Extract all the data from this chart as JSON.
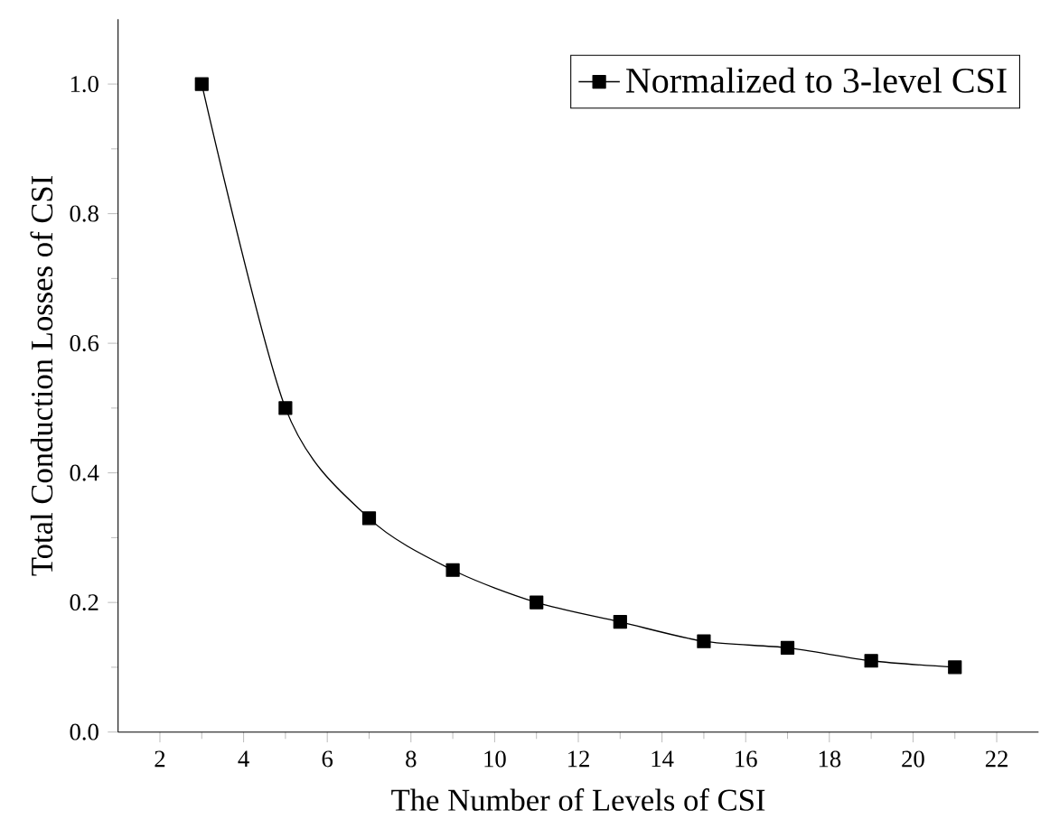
{
  "chart_data": {
    "type": "line",
    "xlabel": "The Number of Levels of CSI",
    "ylabel": "Total Conduction Losses of CSI",
    "x": [
      3,
      5,
      7,
      9,
      11,
      13,
      15,
      17,
      19,
      21
    ],
    "series": [
      {
        "name": "Normalized to 3-level CSI",
        "color": "#000000",
        "values": [
          1,
          0.5,
          0.33,
          0.25,
          0.2,
          0.17,
          0.14,
          0.13,
          0.11,
          0.1
        ]
      }
    ],
    "xlim": [
      1,
      23
    ],
    "ylim": [
      0,
      1.1
    ],
    "xticks": [
      2,
      4,
      6,
      8,
      10,
      12,
      14,
      16,
      18,
      20,
      22
    ],
    "yticks": [
      {
        "value": 0,
        "label": "0.0"
      },
      {
        "value": 0.2,
        "label": "0.2"
      },
      {
        "value": 0.4,
        "label": "0.4"
      },
      {
        "value": 0.6,
        "label": "0.6"
      },
      {
        "value": 0.8,
        "label": "0.8"
      },
      {
        "value": 1.0,
        "label": "1.0"
      }
    ],
    "legend": "top right",
    "marker": "square",
    "line_style": "solid",
    "grid": false
  }
}
